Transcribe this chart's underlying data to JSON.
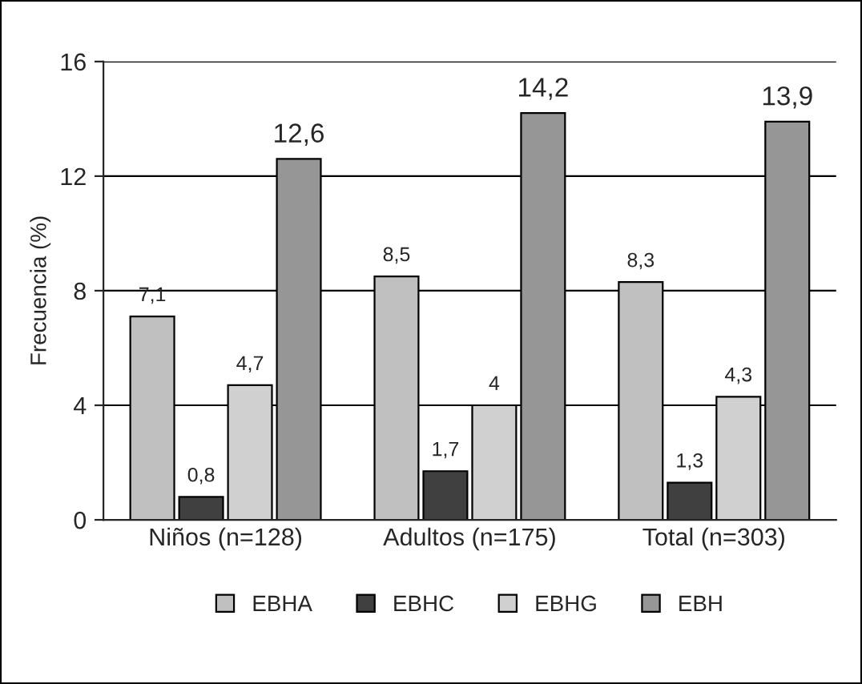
{
  "chart_data": {
    "type": "bar",
    "ylabel": "Frecuencia (%)",
    "categories": [
      "Niños (n=128)",
      "Adultos (n=175)",
      "Total (n=303)"
    ],
    "series": [
      {
        "name": "EBHA",
        "color": "#c0c0c0",
        "values": [
          7.1,
          8.5,
          8.3
        ],
        "value_labels": [
          "7,1",
          "8,5",
          "8,3"
        ]
      },
      {
        "name": "EBHC",
        "color": "#404040",
        "values": [
          0.8,
          1.7,
          1.3
        ],
        "value_labels": [
          "0,8",
          "1,7",
          "1,3"
        ]
      },
      {
        "name": "EBHG",
        "color": "#d0d0d0",
        "values": [
          4.7,
          4.0,
          4.3
        ],
        "value_labels": [
          "4,7",
          "4",
          "4,3"
        ]
      },
      {
        "name": "EBH",
        "color": "#969696",
        "values": [
          12.6,
          14.2,
          13.9
        ],
        "value_labels": [
          "12,6",
          "14,2",
          "13,9"
        ]
      }
    ],
    "ylim": [
      0,
      16
    ],
    "yticks": [
      0,
      4,
      8,
      12,
      16
    ],
    "grid": "y",
    "legend": "bottom"
  }
}
